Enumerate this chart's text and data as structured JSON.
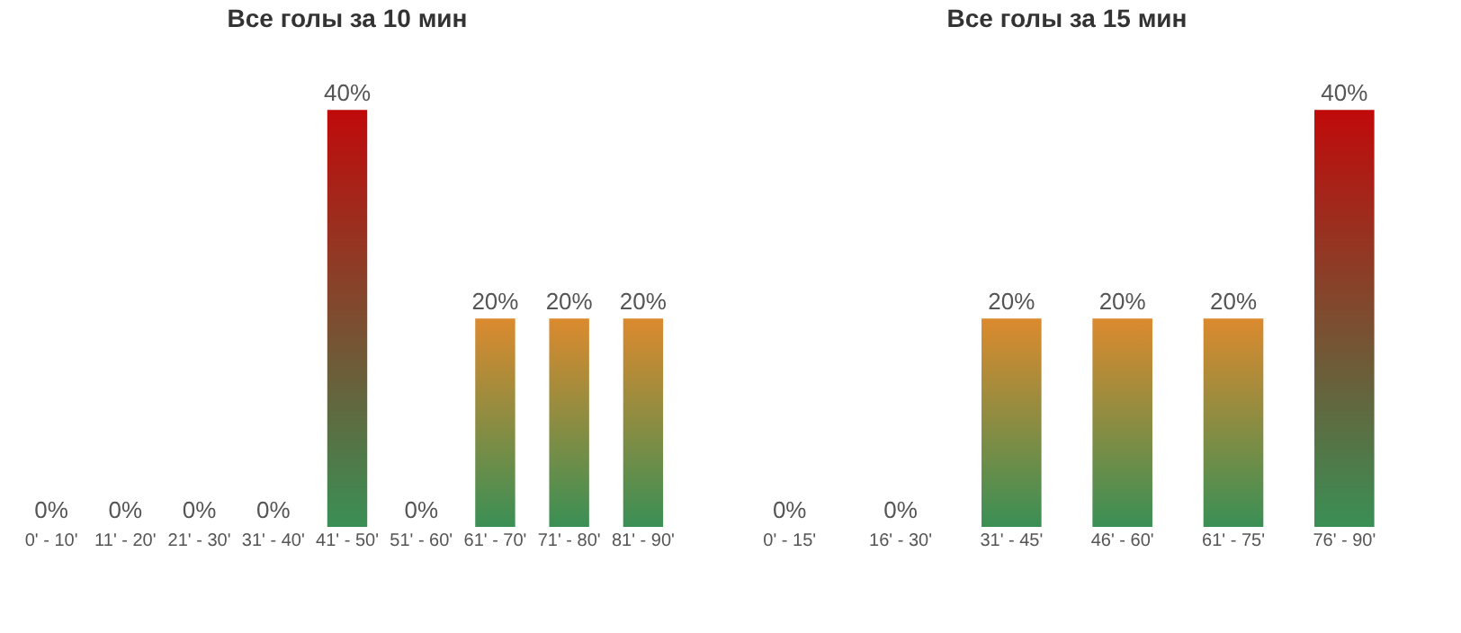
{
  "chart_data": [
    {
      "type": "bar",
      "title": "Все голы за 10 мин",
      "categories": [
        "0' - 10'",
        "11' - 20'",
        "21' - 30'",
        "31' - 40'",
        "41' - 50'",
        "51' - 60'",
        "61' - 70'",
        "71' - 80'",
        "81' - 90'"
      ],
      "series": [
        {
          "color": "#3a8f55",
          "values": [
            0,
            0,
            0,
            0,
            40,
            0,
            20,
            20,
            20
          ],
          "value_labels": [
            "0%",
            "0%",
            "0%",
            "0%",
            "40%",
            "0%",
            "20%",
            "20%",
            "20%"
          ]
        }
      ],
      "colors": [
        "#3a8f55",
        "#3a8f55",
        "#3a8f55",
        "#3a8f55",
        "#c00a0a",
        "#3a8f55",
        "#dc8a2e",
        "#dc8a2e",
        "#dc8a2e"
      ]
    },
    {
      "type": "bar",
      "title": "Все голы за 15 мин",
      "categories": [
        "0' - 15'",
        "16' - 30'",
        "31' - 45'",
        "46' - 60'",
        "61' - 75'",
        "76' - 90'"
      ],
      "series": [
        {
          "color": "#3a8f55",
          "values": [
            0,
            0,
            20,
            20,
            20,
            40
          ],
          "value_labels": [
            "0%",
            "0%",
            "20%",
            "20%",
            "20%",
            "40%"
          ]
        }
      ],
      "colors": [
        "#3a8f55",
        "#3a8f55",
        "#dc8a2e",
        "#dc8a2e",
        "#dc8a2e",
        "#c00a0a"
      ]
    }
  ]
}
